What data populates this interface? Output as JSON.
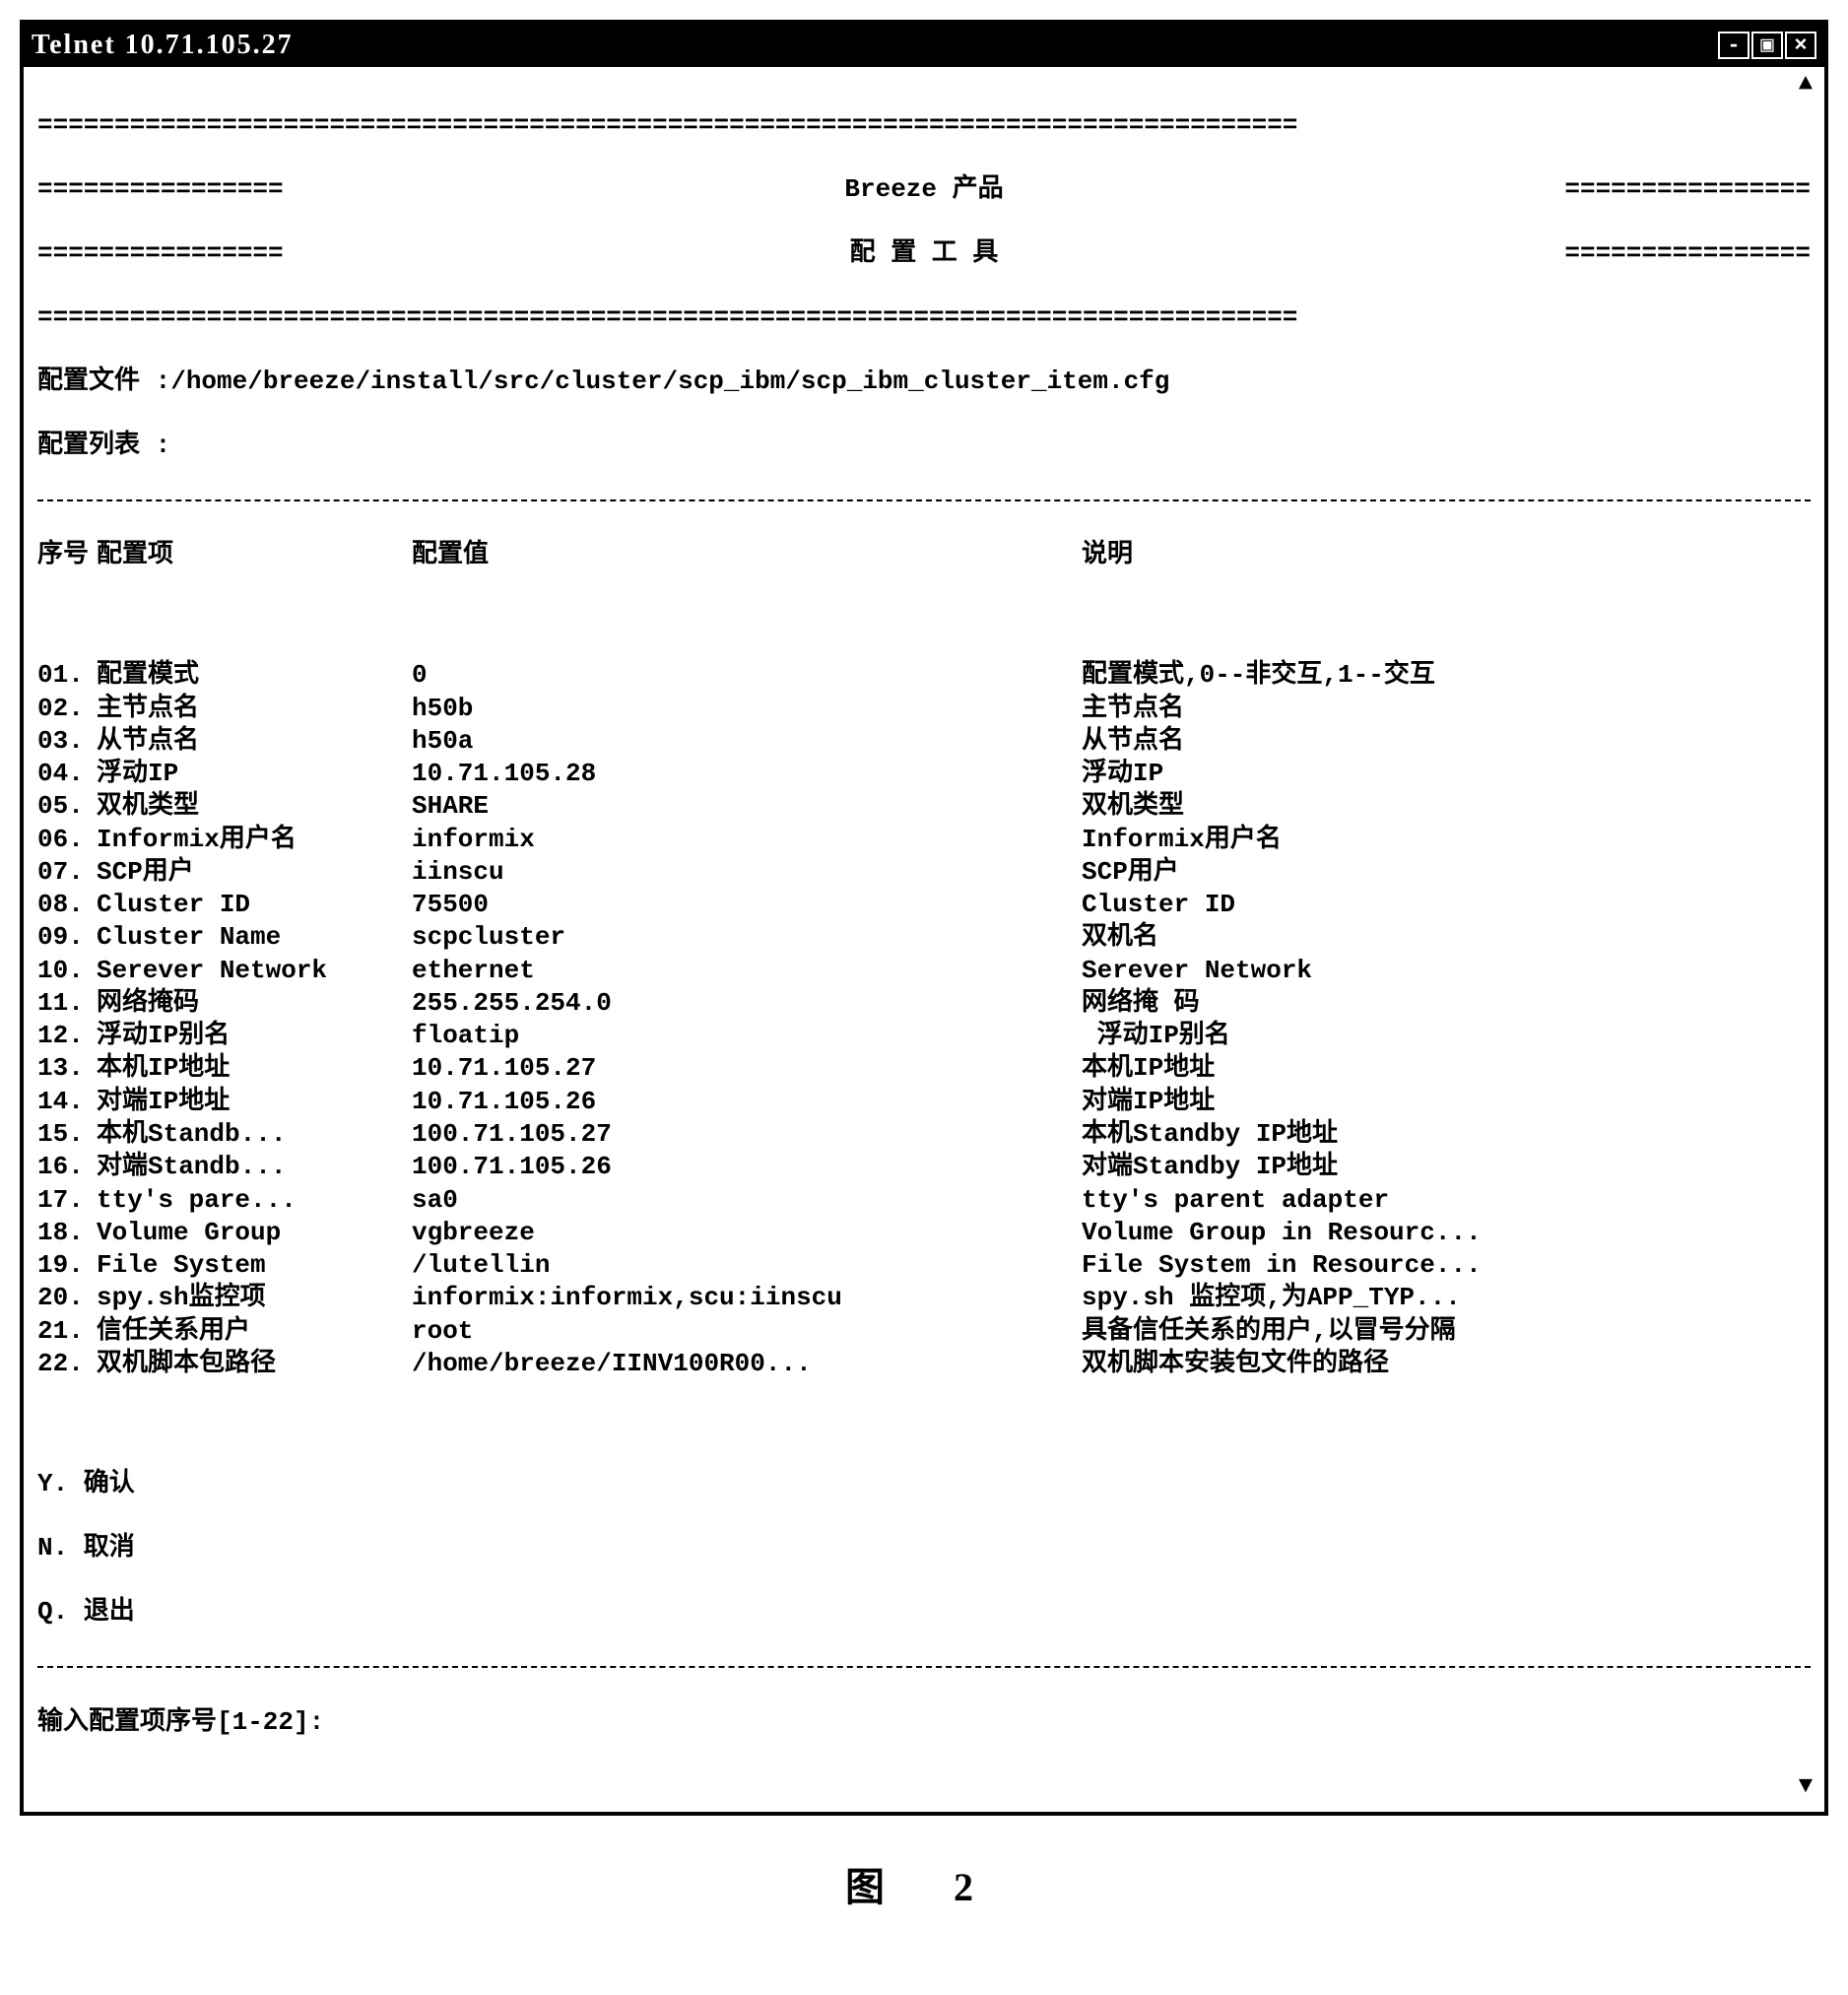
{
  "window": {
    "title": "Telnet 10.71.105.27"
  },
  "banner": {
    "eq_short": "================",
    "eq_long": "==================================================================================",
    "title1": "Breeze 产品",
    "title2": "配 置 工 具"
  },
  "config": {
    "file_label": "配置文件 :",
    "file_path": "/home/breeze/install/src/cluster/scp_ibm/scp_ibm_cluster_item.cfg",
    "list_label": "配置列表 :"
  },
  "headers": {
    "num": "序号",
    "item": "配置项",
    "val": "配置值",
    "desc": "说明"
  },
  "rows": [
    {
      "num": "01.",
      "item": "配置模式",
      "val": "0",
      "desc": "配置模式,0--非交互,1--交互"
    },
    {
      "num": "02.",
      "item": "主节点名",
      "val": "h50b",
      "desc": "主节点名"
    },
    {
      "num": "03.",
      "item": "从节点名",
      "val": "h50a",
      "desc": "从节点名"
    },
    {
      "num": "04.",
      "item": "浮动IP",
      "val": "10.71.105.28",
      "desc": "浮动IP"
    },
    {
      "num": "05.",
      "item": "双机类型",
      "val": "SHARE",
      "desc": "双机类型"
    },
    {
      "num": "06.",
      "item": "Informix用户名",
      "val": "informix",
      "desc": "Informix用户名"
    },
    {
      "num": "07.",
      "item": "SCP用户",
      "val": "iinscu",
      "desc": "SCP用户"
    },
    {
      "num": "08.",
      "item": "Cluster ID",
      "val": "75500",
      "desc": "Cluster ID"
    },
    {
      "num": "09.",
      "item": "Cluster Name",
      "val": "scpcluster",
      "desc": "双机名"
    },
    {
      "num": "10.",
      "item": "Serever Network",
      "val": "ethernet",
      "desc": "Serever Network"
    },
    {
      "num": "11.",
      "item": "网络掩码",
      "val": "255.255.254.0",
      "desc": "网络掩 码"
    },
    {
      "num": "12.",
      "item": "浮动IP别名",
      "val": "floatip",
      "desc": " 浮动IP别名"
    },
    {
      "num": "13.",
      "item": "本机IP地址",
      "val": "10.71.105.27",
      "desc": "本机IP地址"
    },
    {
      "num": "14.",
      "item": "对端IP地址",
      "val": "10.71.105.26",
      "desc": "对端IP地址"
    },
    {
      "num": "15.",
      "item": "本机Standb...",
      "val": "100.71.105.27",
      "desc": "本机Standby IP地址"
    },
    {
      "num": "16.",
      "item": "对端Standb...",
      "val": "100.71.105.26",
      "desc": "对端Standby IP地址"
    },
    {
      "num": "17.",
      "item": "tty's pare...",
      "val": "sa0",
      "desc": "tty's parent adapter"
    },
    {
      "num": "18.",
      "item": "Volume Group",
      "val": "vgbreeze",
      "desc": "Volume Group in Resourc..."
    },
    {
      "num": "19.",
      "item": "File System",
      "val": "/lutellin",
      "desc": "File System in Resource..."
    },
    {
      "num": "20.",
      "item": "spy.sh监控项",
      "val": "informix:informix,scu:iinscu",
      "desc": "spy.sh 监控项,为APP_TYP..."
    },
    {
      "num": "21.",
      "item": "信任关系用户",
      "val": "root",
      "desc": "具备信任关系的用户,以冒号分隔"
    },
    {
      "num": "22.",
      "item": "双机脚本包路径",
      "val": "/home/breeze/IINV100R00...",
      "desc": "双机脚本安装包文件的路径"
    }
  ],
  "choices": {
    "y": "Y. 确认",
    "n": "N. 取消",
    "q": "Q. 退出"
  },
  "prompt": "输入配置项序号[1-22]:",
  "caption": "图    2",
  "scroll": {
    "up": "▲",
    "down": "▼"
  }
}
